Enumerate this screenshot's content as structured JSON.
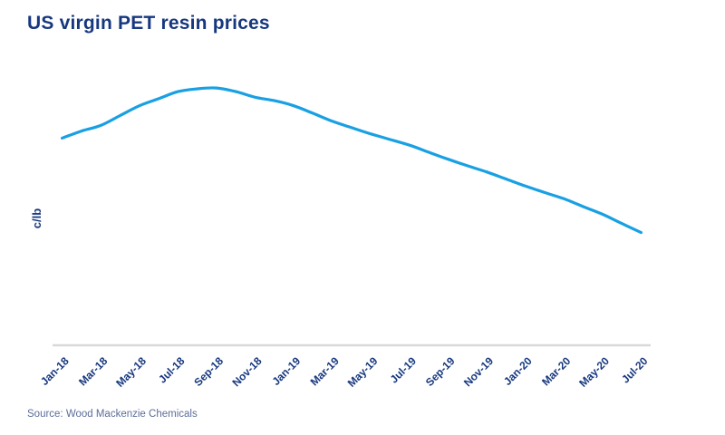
{
  "chart_data": {
    "type": "line",
    "title": "US virgin PET resin prices",
    "ylabel": "c/lb",
    "xlabel": "",
    "source": "Source: Wood Mackenzie Chemicals",
    "categories": [
      "Jan-18",
      "Mar-18",
      "May-18",
      "Jul-18",
      "Sep-18",
      "Nov-18",
      "Jan-19",
      "Mar-19",
      "May-19",
      "Jul-19",
      "Sep-19",
      "Nov-19",
      "Jan-20",
      "Mar-20",
      "May-20",
      "Jul-20"
    ],
    "x_frequency": "monthly points, axis labeled every 2 months",
    "series": [
      {
        "name": "US virgin PET resin price",
        "months": [
          "Jan-18",
          "Feb-18",
          "Mar-18",
          "Apr-18",
          "May-18",
          "Jun-18",
          "Jul-18",
          "Aug-18",
          "Sep-18",
          "Oct-18",
          "Nov-18",
          "Dec-18",
          "Jan-19",
          "Feb-19",
          "Mar-19",
          "Apr-19",
          "May-19",
          "Jun-19",
          "Jul-19",
          "Aug-19",
          "Sep-19",
          "Oct-19",
          "Nov-19",
          "Dec-19",
          "Jan-20",
          "Feb-20",
          "Mar-20",
          "Apr-20",
          "May-20",
          "Jun-20",
          "Jul-20"
        ],
        "values": [
          73.5,
          76.0,
          78.0,
          81.5,
          85.0,
          87.5,
          90.0,
          91.0,
          91.3,
          90.0,
          88.0,
          86.8,
          85.0,
          82.3,
          79.5,
          77.2,
          75.0,
          73.0,
          71.0,
          68.5,
          66.0,
          63.7,
          61.5,
          59.0,
          56.5,
          54.2,
          52.0,
          49.2,
          46.5,
          43.2,
          40.0
        ]
      }
    ],
    "ylim": [
      0,
      100
    ],
    "y_axis_ticks": "none shown (axis unlabeled)",
    "values_note": "y-axis has no numeric ticks in the figure; values are relative estimates of curve height (peak Aug/Sep-18, steady decline to Jul-20)",
    "grid": false,
    "legend": false,
    "curve_style": "smooth"
  },
  "style": {
    "title_color": "#17387F",
    "label_color": "#17387F",
    "line_color": "#19A0E3",
    "axis_color": "#D9D9D9",
    "source_color": "#5C6E99",
    "background": "#FFFFFF"
  }
}
